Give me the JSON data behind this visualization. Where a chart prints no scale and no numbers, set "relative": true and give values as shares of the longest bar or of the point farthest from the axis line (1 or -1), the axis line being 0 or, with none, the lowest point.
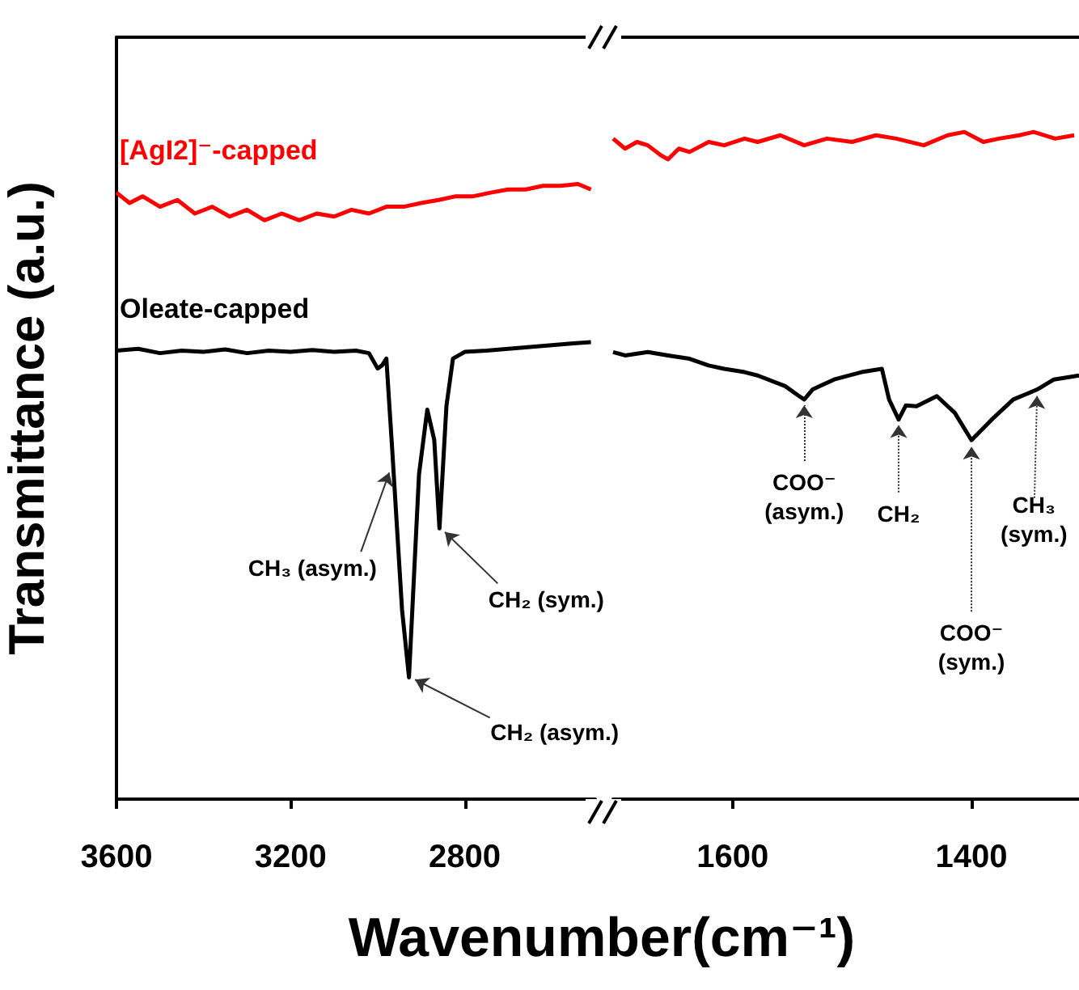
{
  "chart_data": [
    {
      "type": "line",
      "ylabel": "Transmittance (a.u.)",
      "xlabel": "Wavenumber(cm⁻¹)",
      "relative": true,
      "xlim": [
        3600,
        2500
      ],
      "xticks": [
        3600,
        3200,
        2800
      ],
      "legend": false,
      "grid": false,
      "marker": "none",
      "series": [
        {
          "name": "[AgI2]⁻-capped",
          "color": "#ff0000",
          "x": [
            3600,
            3570,
            3540,
            3500,
            3460,
            3420,
            3380,
            3340,
            3300,
            3260,
            3220,
            3180,
            3140,
            3100,
            3060,
            3020,
            2980,
            2940,
            2900,
            2860,
            2820,
            2780,
            2740,
            2700,
            2660,
            2620,
            2580,
            2540,
            2510
          ],
          "values": [
            0.986,
            0.969,
            0.98,
            0.963,
            0.974,
            0.952,
            0.963,
            0.947,
            0.958,
            0.941,
            0.952,
            0.941,
            0.952,
            0.947,
            0.958,
            0.952,
            0.963,
            0.963,
            0.969,
            0.974,
            0.98,
            0.98,
            0.986,
            0.991,
            0.991,
            0.997,
            0.997,
            1.0,
            0.991
          ]
        },
        {
          "name": "Oleate-capped",
          "color": "#000000",
          "x": [
            3600,
            3550,
            3500,
            3450,
            3400,
            3350,
            3300,
            3250,
            3200,
            3150,
            3100,
            3050,
            3020,
            3000,
            2990,
            2980,
            2967,
            2944,
            2928,
            2905,
            2886,
            2870,
            2858,
            2842,
            2827,
            2800,
            2750,
            2700,
            2650,
            2600,
            2550,
            2510
          ],
          "values": [
            0.729,
            0.732,
            0.725,
            0.729,
            0.727,
            0.731,
            0.725,
            0.729,
            0.727,
            0.73,
            0.727,
            0.729,
            0.725,
            0.7,
            0.705,
            0.716,
            0.573,
            0.308,
            0.198,
            0.528,
            0.633,
            0.584,
            0.44,
            0.639,
            0.716,
            0.727,
            0.729,
            0.732,
            0.735,
            0.738,
            0.741,
            0.743
          ]
        }
      ],
      "annotations": [
        {
          "text": "CH₃ (asym.)",
          "x": 2964,
          "y": 0.539
        },
        {
          "text": "CH₂ (asym.)",
          "x": 2928,
          "y": 0.198
        },
        {
          "text": "CH₂ (sym.)",
          "x": 2858,
          "y": 0.44
        }
      ]
    },
    {
      "type": "line",
      "relative": true,
      "xlim": [
        1700,
        1310
      ],
      "xticks": [
        1600,
        1400
      ],
      "legend": false,
      "grid": false,
      "marker": "none",
      "series": [
        {
          "color": "#ff0000",
          "x": [
            1700,
            1690,
            1680,
            1671,
            1660,
            1654,
            1645,
            1636,
            1620,
            1607,
            1590,
            1579,
            1560,
            1540,
            1521,
            1500,
            1480,
            1463,
            1440,
            1420,
            1406,
            1390,
            1377,
            1360,
            1348,
            1330,
            1314
          ],
          "values": [
            0.99,
            0.975,
            0.985,
            0.98,
            0.965,
            0.959,
            0.975,
            0.97,
            0.985,
            0.98,
            0.99,
            0.985,
            0.995,
            0.98,
            0.99,
            0.985,
            0.995,
            0.99,
            0.98,
            0.995,
            1.0,
            0.985,
            0.99,
            0.995,
            1.0,
            0.99,
            0.995
          ]
        },
        {
          "color": "#000000",
          "x": [
            1700,
            1690,
            1671,
            1654,
            1636,
            1620,
            1607,
            1590,
            1579,
            1556,
            1545,
            1540,
            1533,
            1515,
            1492,
            1475,
            1469,
            1461,
            1455,
            1446,
            1429,
            1414,
            1400,
            1383,
            1365,
            1345,
            1331,
            1310
          ],
          "values": [
            0.67,
            0.665,
            0.67,
            0.665,
            0.66,
            0.65,
            0.645,
            0.64,
            0.635,
            0.619,
            0.605,
            0.599,
            0.614,
            0.629,
            0.64,
            0.645,
            0.599,
            0.569,
            0.59,
            0.589,
            0.604,
            0.579,
            0.538,
            0.569,
            0.599,
            0.614,
            0.629,
            0.635
          ]
        }
      ],
      "annotations": [
        {
          "text": "COO⁻\n(asym.)",
          "x": 1540,
          "y": 0.599
        },
        {
          "text": "CH₂",
          "x": 1461,
          "y": 0.569
        },
        {
          "text": "COO⁻\n(sym.)",
          "x": 1400,
          "y": 0.538
        },
        {
          "text": "CH₃\n(sym.)",
          "x": 1345,
          "y": 0.614
        }
      ]
    }
  ]
}
